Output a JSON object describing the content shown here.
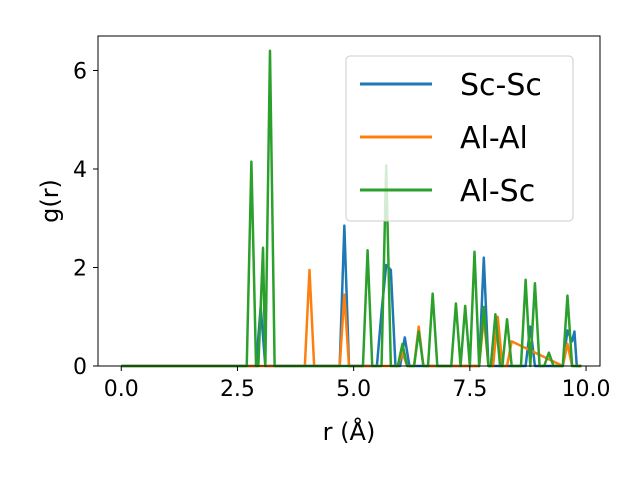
{
  "chart_data": {
    "type": "line",
    "xlabel": "r (Å)",
    "ylabel": "g(r)",
    "xlim": [
      -0.5,
      10.3
    ],
    "ylim": [
      0,
      6.7
    ],
    "xticks": [
      0.0,
      2.5,
      5.0,
      7.5,
      10.0
    ],
    "xtick_labels": [
      "0.0",
      "2.5",
      "5.0",
      "7.5",
      "10.0"
    ],
    "yticks": [
      0,
      2,
      4,
      6
    ],
    "ytick_labels": [
      "0",
      "2",
      "4",
      "6"
    ],
    "grid": false,
    "legend_position": "upper-right",
    "series": [
      {
        "name": "Sc-Sc",
        "color": "#1f77b4",
        "x": [
          0.0,
          2.9,
          3.0,
          3.1,
          4.7,
          4.8,
          4.9,
          5.5,
          5.6,
          5.7,
          5.8,
          5.9,
          6.0,
          6.1,
          6.2,
          7.7,
          7.8,
          7.9,
          8.7,
          8.8,
          8.9,
          9.5,
          9.6,
          9.7,
          9.75,
          9.8,
          9.9
        ],
        "y": [
          0.0,
          0.0,
          1.2,
          0.0,
          0.0,
          2.85,
          0.0,
          0.0,
          1.1,
          2.05,
          1.95,
          0.0,
          0.0,
          0.58,
          0.0,
          0.0,
          2.2,
          0.0,
          0.0,
          0.8,
          0.0,
          0.0,
          0.72,
          0.5,
          0.7,
          0.0,
          0.0
        ]
      },
      {
        "name": "Al-Al",
        "color": "#ff7f0e",
        "x": [
          0.0,
          3.95,
          4.05,
          4.15,
          4.7,
          4.8,
          4.9,
          5.95,
          6.05,
          6.15,
          6.3,
          6.4,
          6.5,
          7.7,
          7.8,
          7.9,
          8.0,
          8.1,
          8.2,
          8.3,
          8.4,
          9.5,
          9.6,
          9.7,
          9.9
        ],
        "y": [
          0.0,
          0.0,
          1.95,
          0.0,
          0.0,
          1.45,
          0.0,
          0.0,
          0.28,
          0.0,
          0.0,
          0.8,
          0.0,
          0.0,
          1.0,
          0.0,
          0.0,
          1.0,
          0.0,
          0.0,
          0.5,
          0.0,
          0.45,
          0.0,
          0.0
        ]
      },
      {
        "name": "Al-Sc",
        "color": "#2ca02c",
        "x": [
          0.0,
          2.7,
          2.8,
          2.9,
          2.95,
          3.05,
          3.1,
          3.2,
          3.3,
          5.2,
          5.3,
          5.4,
          5.5,
          5.6,
          5.7,
          5.8,
          5.95,
          6.05,
          6.15,
          6.3,
          6.4,
          6.5,
          6.6,
          6.7,
          6.8,
          7.1,
          7.2,
          7.3,
          7.4,
          7.5,
          7.6,
          7.7,
          7.8,
          7.9,
          7.95,
          8.05,
          8.15,
          8.2,
          8.3,
          8.4,
          8.5,
          8.6,
          8.7,
          8.8,
          8.9,
          9.0,
          9.1,
          9.2,
          9.3,
          9.4,
          9.5,
          9.6,
          9.7,
          9.9
        ],
        "y": [
          0.0,
          0.0,
          4.15,
          0.0,
          0.0,
          2.4,
          0.0,
          6.4,
          0.0,
          0.0,
          2.35,
          0.0,
          0.0,
          0.0,
          4.07,
          0.0,
          0.0,
          0.45,
          0.0,
          0.0,
          0.7,
          0.0,
          0.0,
          1.47,
          0.0,
          0.0,
          1.27,
          0.0,
          1.22,
          0.0,
          2.32,
          0.0,
          1.2,
          0.0,
          0.0,
          1.05,
          0.0,
          0.0,
          0.95,
          0.0,
          0.0,
          0.0,
          1.75,
          0.0,
          1.68,
          0.0,
          0.0,
          0.27,
          0.0,
          0.0,
          0.0,
          1.43,
          0.0,
          0.0
        ]
      }
    ]
  }
}
